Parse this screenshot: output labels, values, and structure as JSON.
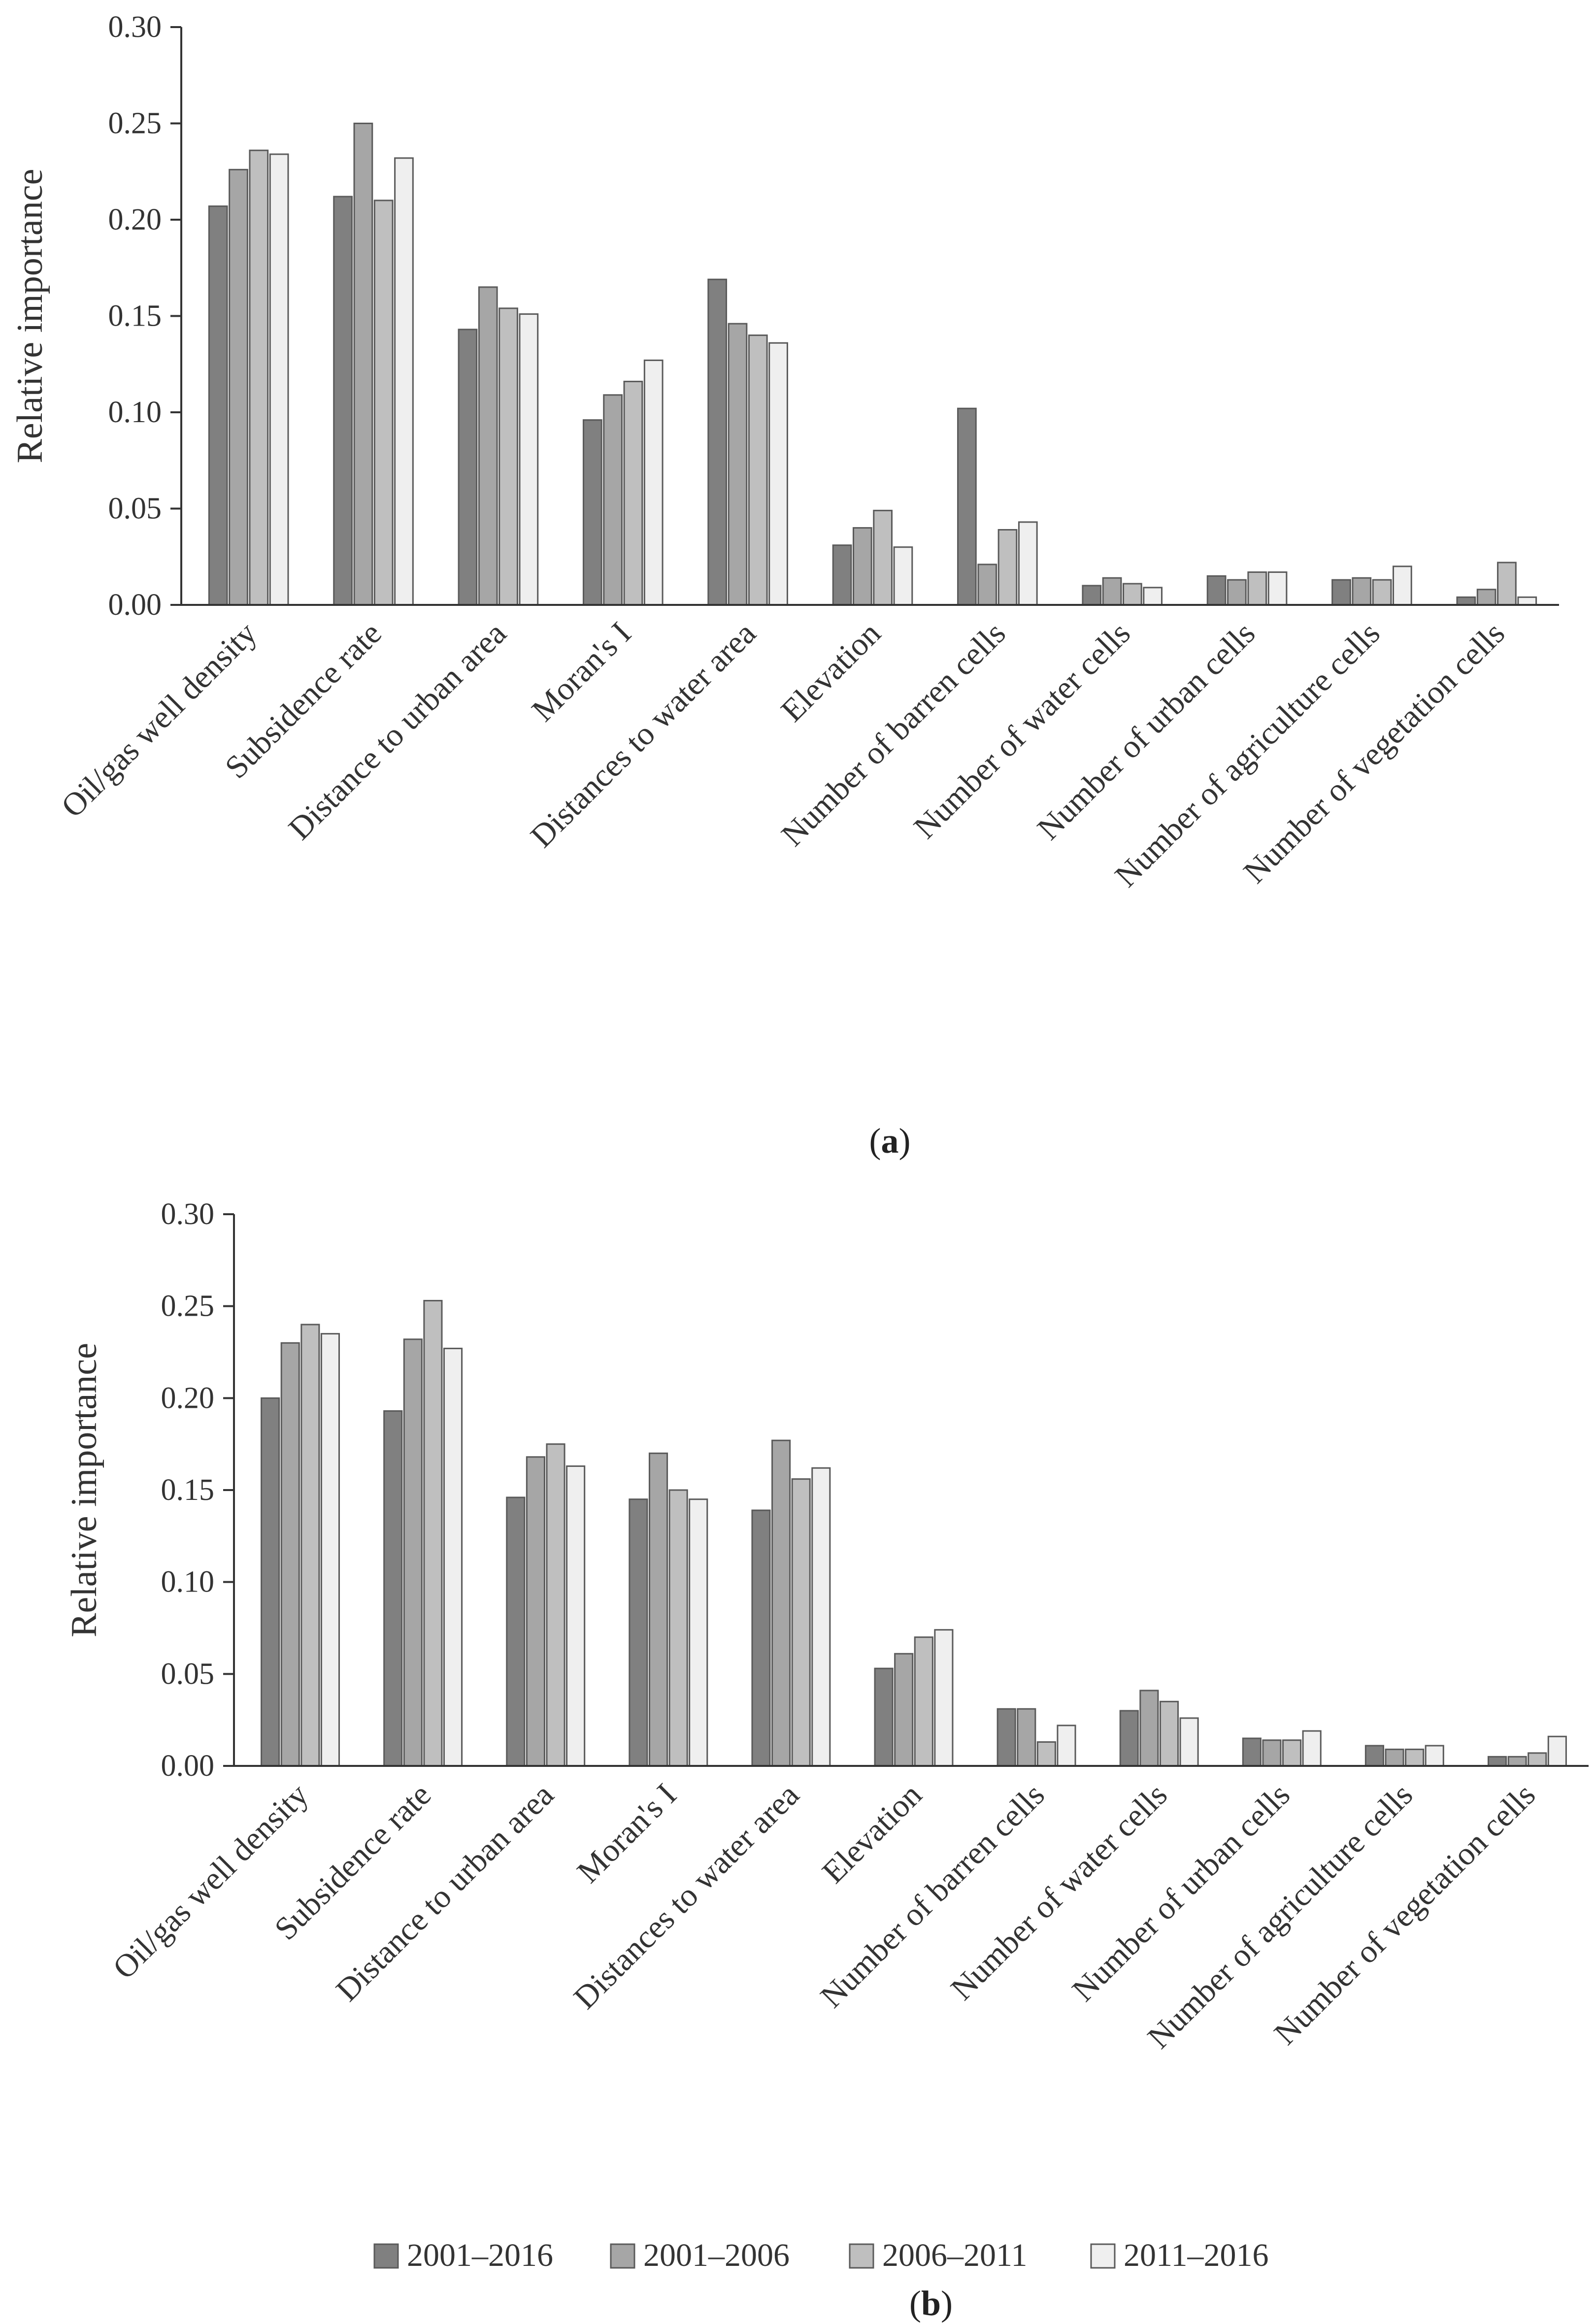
{
  "chart_data": [
    {
      "type": "bar",
      "panel_label": "a",
      "ylabel": "Relative importance",
      "ylim": [
        0,
        0.3
      ],
      "yticks": [
        "0.00",
        "0.05",
        "0.10",
        "0.15",
        "0.20",
        "0.25",
        "0.30"
      ],
      "categories": [
        "Oil/gas well density",
        "Subsidence rate",
        "Distance to urban area",
        "Moran's I",
        "Distances to water area",
        "Elevation",
        "Number of barren cells",
        "Number of water cells",
        "Number of urban cells",
        "Number of agriculture cells",
        "Number of vegetation cells"
      ],
      "series": [
        {
          "name": "2001–2016",
          "color": "#808080",
          "values": [
            0.207,
            0.212,
            0.143,
            0.096,
            0.169,
            0.031,
            0.102,
            0.01,
            0.015,
            0.013,
            0.004
          ]
        },
        {
          "name": "2001–2006",
          "color": "#a6a6a6",
          "values": [
            0.226,
            0.25,
            0.165,
            0.109,
            0.146,
            0.04,
            0.021,
            0.014,
            0.013,
            0.014,
            0.008
          ]
        },
        {
          "name": "2006–2011",
          "color": "#bfbfbf",
          "values": [
            0.236,
            0.21,
            0.154,
            0.116,
            0.14,
            0.049,
            0.039,
            0.011,
            0.017,
            0.013,
            0.022
          ]
        },
        {
          "name": "2011–2016",
          "color": "#efefef",
          "values": [
            0.234,
            0.232,
            0.151,
            0.127,
            0.136,
            0.03,
            0.043,
            0.009,
            0.017,
            0.02,
            0.004
          ]
        }
      ]
    },
    {
      "type": "bar",
      "panel_label": "b",
      "ylabel": "Relative importance",
      "ylim": [
        0,
        0.3
      ],
      "yticks": [
        "0.00",
        "0.05",
        "0.10",
        "0.15",
        "0.20",
        "0.25",
        "0.30"
      ],
      "categories": [
        "Oil/gas well density",
        "Subsidence rate",
        "Distance to urban area",
        "Moran's I",
        "Distances to water area",
        "Elevation",
        "Number of barren cells",
        "Number of water cells",
        "Number of urban cells",
        "Number of agriculture cells",
        "Number of vegetation cells"
      ],
      "series": [
        {
          "name": "2001–2016",
          "color": "#808080",
          "values": [
            0.2,
            0.193,
            0.146,
            0.145,
            0.139,
            0.053,
            0.031,
            0.03,
            0.015,
            0.011,
            0.005
          ]
        },
        {
          "name": "2001–2006",
          "color": "#a6a6a6",
          "values": [
            0.23,
            0.232,
            0.168,
            0.17,
            0.177,
            0.061,
            0.031,
            0.041,
            0.014,
            0.009,
            0.005
          ]
        },
        {
          "name": "2006–2011",
          "color": "#bfbfbf",
          "values": [
            0.24,
            0.253,
            0.175,
            0.15,
            0.156,
            0.07,
            0.013,
            0.035,
            0.014,
            0.009,
            0.007
          ]
        },
        {
          "name": "2011–2016",
          "color": "#efefef",
          "values": [
            0.235,
            0.227,
            0.163,
            0.145,
            0.162,
            0.074,
            0.022,
            0.026,
            0.019,
            0.011,
            0.016
          ]
        }
      ]
    }
  ],
  "legend": [
    {
      "label": "2001–2016",
      "color": "#808080"
    },
    {
      "label": "2001–2006",
      "color": "#a6a6a6"
    },
    {
      "label": "2006–2011",
      "color": "#bfbfbf"
    },
    {
      "label": "2011–2016",
      "color": "#efefef"
    }
  ]
}
